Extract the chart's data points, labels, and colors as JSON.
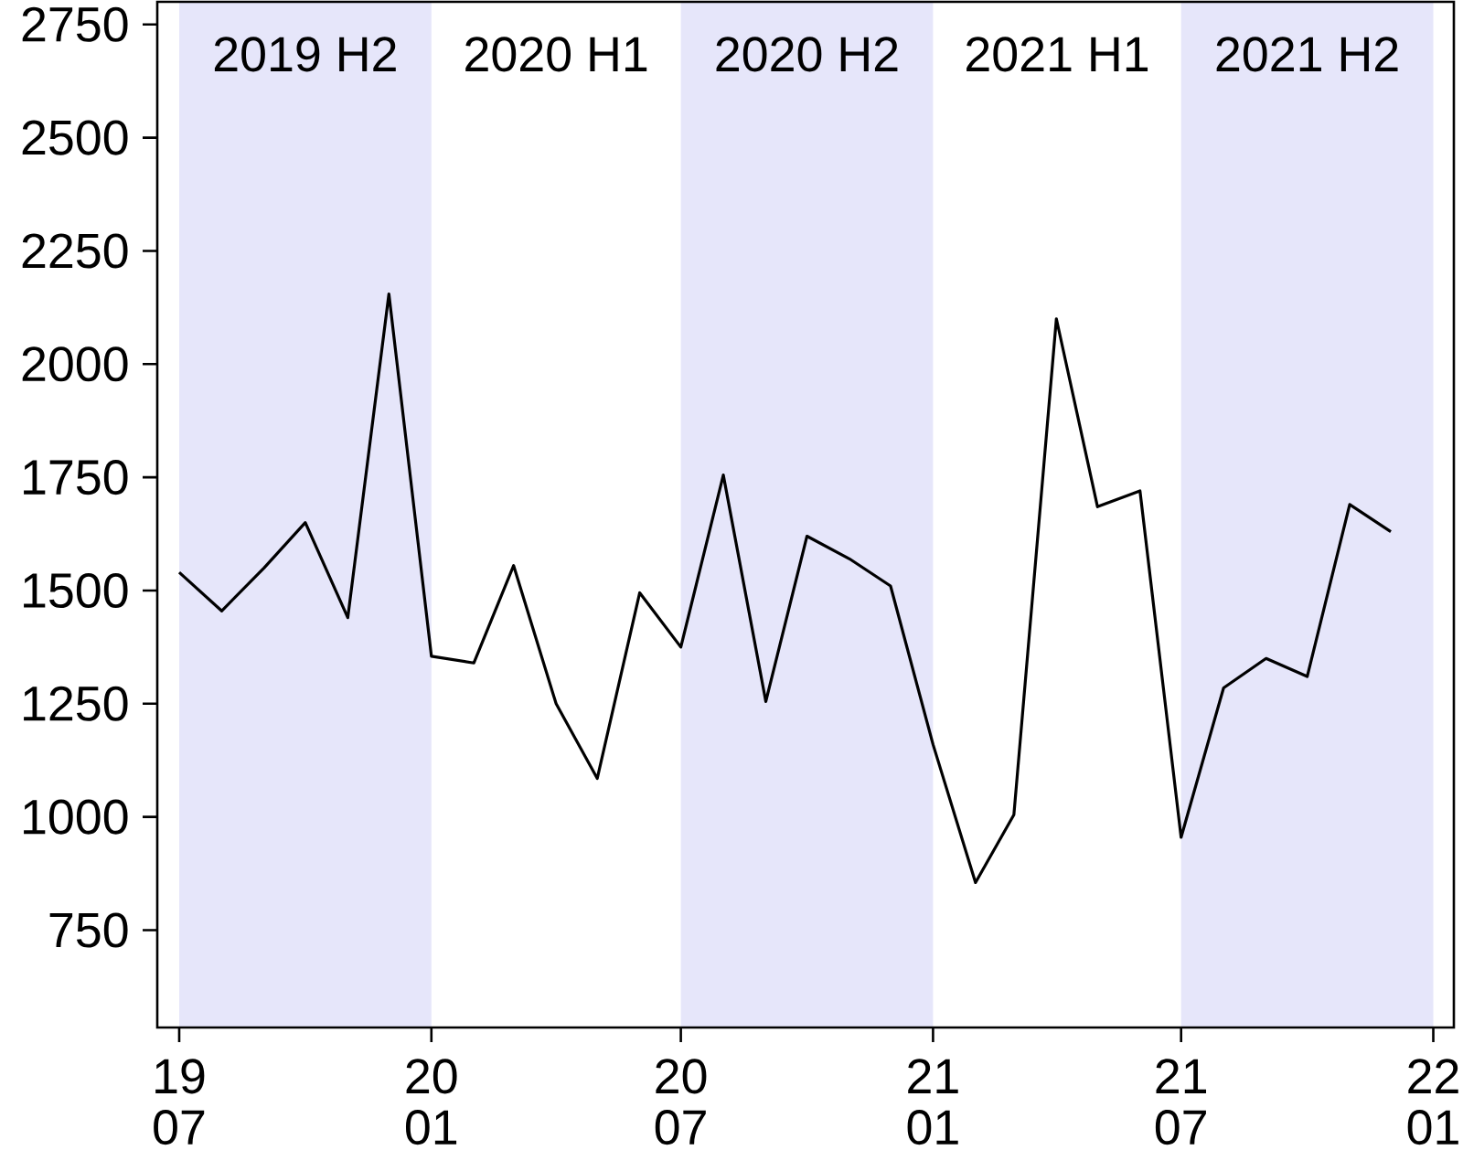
{
  "chart_data": {
    "type": "line",
    "color": "#000000",
    "x": [
      "2019-07",
      "2019-08",
      "2019-09",
      "2019-10",
      "2019-11",
      "2019-12",
      "2020-01",
      "2020-02",
      "2020-03",
      "2020-04",
      "2020-05",
      "2020-06",
      "2020-07",
      "2020-08",
      "2020-09",
      "2020-10",
      "2020-11",
      "2020-12",
      "2021-01",
      "2021-02",
      "2021-03",
      "2021-04",
      "2021-05",
      "2021-06",
      "2021-07",
      "2021-08",
      "2021-09",
      "2021-10",
      "2021-11",
      "2021-12"
    ],
    "values": [
      1540,
      1455,
      1550,
      1650,
      1440,
      2155,
      1355,
      1340,
      1555,
      1250,
      1085,
      1495,
      1375,
      1755,
      1255,
      1620,
      1570,
      1510,
      1160,
      855,
      1005,
      2100,
      1685,
      1720,
      955,
      1285,
      1350,
      1310,
      1690,
      1630
    ],
    "xlim": [
      "2019-06-15",
      "2022-01-16"
    ],
    "ylim": [
      535,
      2800
    ],
    "xticks": [
      {
        "value": "2019-07",
        "label": "19 07"
      },
      {
        "value": "2020-01",
        "label": "20 01"
      },
      {
        "value": "2020-07",
        "label": "20 07"
      },
      {
        "value": "2021-01",
        "label": "21 01"
      },
      {
        "value": "2021-07",
        "label": "21 07"
      },
      {
        "value": "2022-01",
        "label": "22 01"
      }
    ],
    "yticks": [
      750,
      1000,
      1250,
      1500,
      1750,
      2000,
      2250,
      2500,
      2750
    ],
    "bands": [
      {
        "axis": "x",
        "from": "2019-07",
        "to": "2020-01",
        "label": "2019 H2",
        "color": "#e6e6fa"
      },
      {
        "axis": "x",
        "from": "2020-07",
        "to": "2021-01",
        "label": "2020 H2",
        "color": "#e6e6fa"
      },
      {
        "axis": "x",
        "from": "2021-07",
        "to": "2022-01",
        "label": "2021 H2",
        "color": "#e6e6fa"
      }
    ],
    "annotations": [
      "2020 H1",
      "2021 H1"
    ]
  }
}
